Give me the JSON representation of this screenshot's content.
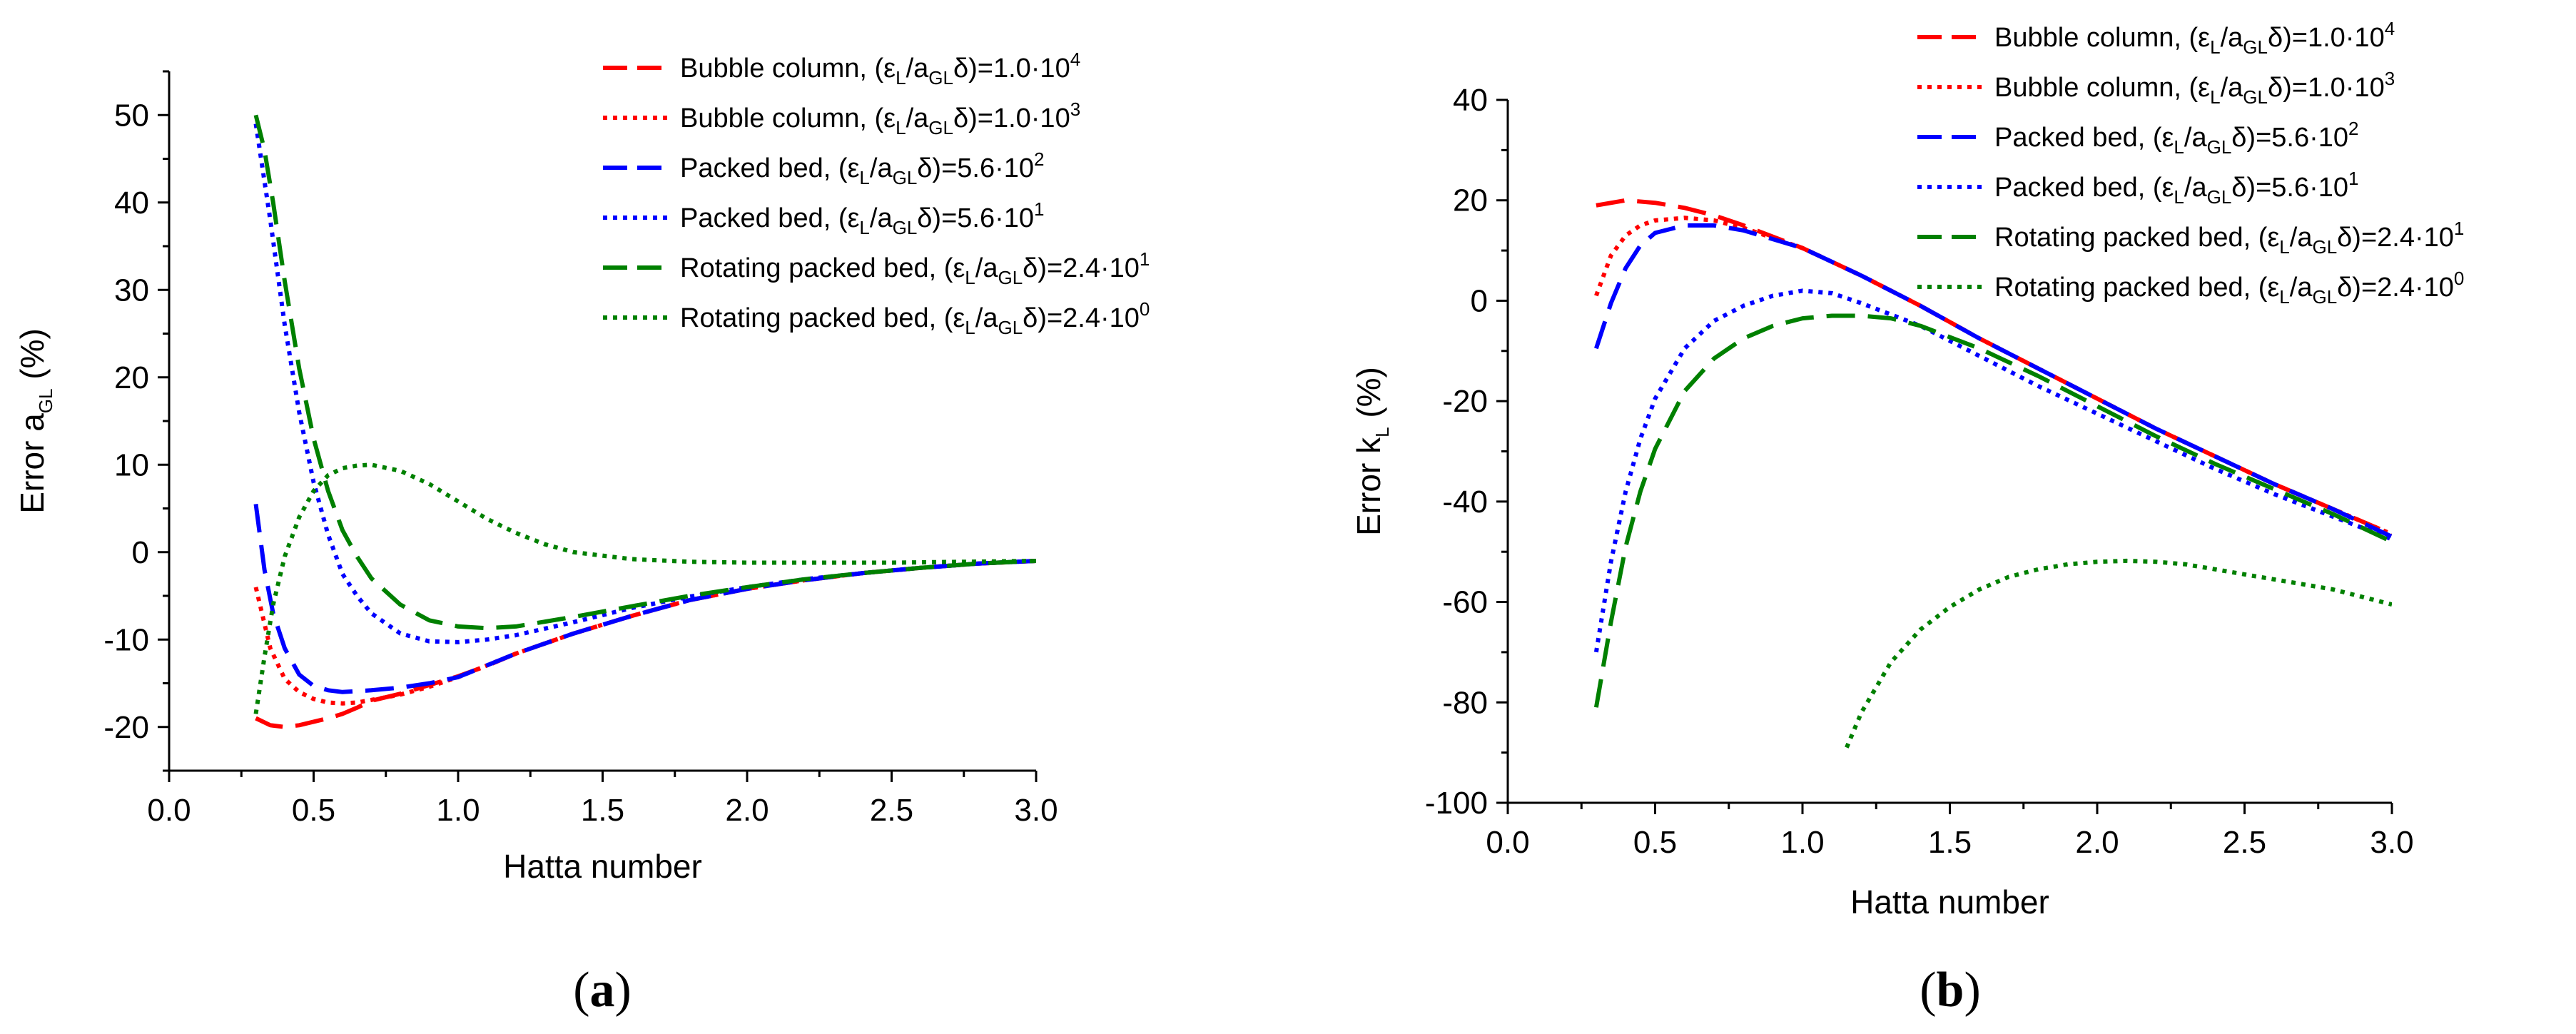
{
  "chart_data": [
    {
      "id": "a",
      "type": "line",
      "panel_label": {
        "open": "(",
        "letter": "a",
        "close": ")"
      },
      "xlabel": "Hatta number",
      "ylabel": {
        "main": "Error a",
        "sub": "GL",
        "suffix": " (%)"
      },
      "xlim": [
        0,
        3.0
      ],
      "ylim": [
        -25,
        55
      ],
      "xticks": [
        0.0,
        0.5,
        1.0,
        1.5,
        2.0,
        2.5,
        3.0
      ],
      "xtick_labels": [
        "0.0",
        "0.5",
        "1.0",
        "1.5",
        "2.0",
        "2.5",
        "3.0"
      ],
      "yticks": [
        -20,
        -10,
        0,
        10,
        20,
        30,
        40,
        50
      ],
      "ytick_labels": [
        "-20",
        "-10",
        "0",
        "10",
        "20",
        "30",
        "40",
        "50"
      ],
      "legend_position": "top-right",
      "series": [
        {
          "name": "Bubble column, (εL/aGLδ)=1.0·10^4",
          "legend": {
            "prefix": "Bubble column, (ε",
            "s1": "L",
            "mid": "/a",
            "s2": "GL",
            "post": "δ)=1.0·10",
            "exp": "4"
          },
          "color": "#ff0000",
          "style": "dash",
          "x": [
            0.3,
            0.35,
            0.4,
            0.45,
            0.5,
            0.55,
            0.6,
            0.65,
            0.7,
            0.8,
            0.9,
            1.0,
            1.1,
            1.2,
            1.4,
            1.6,
            1.8,
            2.0,
            2.2,
            2.4,
            2.6,
            2.8,
            3.0
          ],
          "y": [
            -19,
            -19.8,
            -20,
            -19.8,
            -19.4,
            -19,
            -18.5,
            -17.8,
            -17,
            -16.2,
            -15.2,
            -14.2,
            -13,
            -11.6,
            -9.3,
            -7.3,
            -5.5,
            -4.2,
            -3.2,
            -2.4,
            -1.8,
            -1.3,
            -1.0
          ]
        },
        {
          "name": "Bubble column, (εL/aGLδ)=1.0·10^3",
          "legend": {
            "prefix": "Bubble column, (ε",
            "s1": "L",
            "mid": "/a",
            "s2": "GL",
            "post": "δ)=1.0·10",
            "exp": "3"
          },
          "color": "#ff0000",
          "style": "dot",
          "x": [
            0.3,
            0.35,
            0.4,
            0.45,
            0.5,
            0.55,
            0.6,
            0.65,
            0.7,
            0.8,
            0.9,
            1.0,
            1.2,
            1.4,
            1.6,
            1.8,
            2.0,
            2.2,
            2.4,
            2.6,
            2.8,
            3.0
          ],
          "y": [
            -4,
            -11,
            -14.5,
            -16,
            -16.8,
            -17.2,
            -17.3,
            -17.2,
            -16.9,
            -16.3,
            -15.4,
            -14.3,
            -11.6,
            -9.3,
            -7.3,
            -5.5,
            -4.2,
            -3.2,
            -2.4,
            -1.8,
            -1.3,
            -1.0
          ]
        },
        {
          "name": "Packed bed, (εL/aGLδ)=5.6·10^2",
          "legend": {
            "prefix": "Packed bed, (ε",
            "s1": "L",
            "mid": "/a",
            "s2": "GL",
            "post": "δ)=5.6·10",
            "exp": "2"
          },
          "color": "#0000ff",
          "style": "dash",
          "x": [
            0.3,
            0.33,
            0.36,
            0.4,
            0.45,
            0.5,
            0.55,
            0.6,
            0.7,
            0.8,
            0.9,
            1.0,
            1.2,
            1.4,
            1.6,
            1.8,
            2.0,
            2.2,
            2.4,
            2.6,
            2.8,
            3.0
          ],
          "y": [
            5.5,
            -2,
            -7,
            -11,
            -14,
            -15.3,
            -15.8,
            -16,
            -15.8,
            -15.5,
            -15,
            -14.3,
            -11.6,
            -9.3,
            -7.3,
            -5.5,
            -4.2,
            -3.2,
            -2.4,
            -1.8,
            -1.3,
            -1.0
          ]
        },
        {
          "name": "Packed bed, (εL/aGLδ)=5.6·10^1",
          "legend": {
            "prefix": "Packed bed, (ε",
            "s1": "L",
            "mid": "/a",
            "s2": "GL",
            "post": "δ)=5.6·10",
            "exp": "1"
          },
          "color": "#0000ff",
          "style": "dot",
          "x": [
            0.3,
            0.35,
            0.4,
            0.45,
            0.5,
            0.55,
            0.6,
            0.65,
            0.7,
            0.8,
            0.9,
            1.0,
            1.1,
            1.2,
            1.4,
            1.6,
            1.8,
            2.0,
            2.2,
            2.4,
            2.6,
            2.8,
            3.0
          ],
          "y": [
            49,
            38,
            26,
            16,
            8,
            2,
            -2.5,
            -5,
            -7,
            -9.3,
            -10.2,
            -10.3,
            -10,
            -9.5,
            -8,
            -6.4,
            -5.1,
            -4,
            -3.1,
            -2.4,
            -1.8,
            -1.3,
            -1.0
          ]
        },
        {
          "name": "Rotating packed bed, (εL/aGLδ)=2.4·10^1",
          "legend": {
            "prefix": "Rotating packed bed, (ε",
            "s1": "L",
            "mid": "/a",
            "s2": "GL",
            "post": "δ)=2.4·10",
            "exp": "1"
          },
          "color": "#008000",
          "style": "dash",
          "x": [
            0.3,
            0.33,
            0.36,
            0.4,
            0.45,
            0.5,
            0.55,
            0.6,
            0.65,
            0.7,
            0.8,
            0.9,
            1.0,
            1.1,
            1.2,
            1.4,
            1.6,
            1.8,
            2.0,
            2.2,
            2.4,
            2.6,
            2.8,
            3.0
          ],
          "y": [
            50,
            46,
            40,
            31,
            21,
            13,
            7,
            2.5,
            -0.5,
            -3,
            -6,
            -7.8,
            -8.5,
            -8.7,
            -8.5,
            -7.4,
            -6.2,
            -5,
            -4,
            -3.1,
            -2.4,
            -1.8,
            -1.3,
            -1.0
          ]
        },
        {
          "name": "Rotating packed bed, (εL/aGLδ)=2.4·10^0",
          "legend": {
            "prefix": "Rotating packed bed, (ε",
            "s1": "L",
            "mid": "/a",
            "s2": "GL",
            "post": "δ)=2.4·10",
            "exp": "0"
          },
          "color": "#008000",
          "style": "dot",
          "x": [
            0.3,
            0.33,
            0.36,
            0.4,
            0.45,
            0.5,
            0.55,
            0.6,
            0.65,
            0.7,
            0.8,
            0.9,
            1.0,
            1.1,
            1.2,
            1.3,
            1.4,
            1.6,
            1.8,
            2.0,
            2.2,
            2.5,
            3.0
          ],
          "y": [
            -18.5,
            -12,
            -6,
            -0.5,
            4,
            7,
            8.8,
            9.6,
            9.9,
            10,
            9.3,
            7.8,
            5.8,
            3.8,
            2.2,
            0.9,
            0,
            -0.8,
            -1.1,
            -1.2,
            -1.2,
            -1.2,
            -1.0
          ]
        }
      ]
    },
    {
      "id": "b",
      "type": "line",
      "panel_label": {
        "open": "(",
        "letter": "b",
        "close": ")"
      },
      "xlabel": "Hatta number",
      "ylabel": {
        "main": "Error k",
        "sub": "L",
        "suffix": " (%)"
      },
      "xlim": [
        0,
        3.0
      ],
      "ylim": [
        -100,
        40
      ],
      "xticks": [
        0.0,
        0.5,
        1.0,
        1.5,
        2.0,
        2.5,
        3.0
      ],
      "xtick_labels": [
        "0.0",
        "0.5",
        "1.0",
        "1.5",
        "2.0",
        "2.5",
        "3.0"
      ],
      "yticks": [
        -100,
        -80,
        -60,
        -40,
        -20,
        0,
        20,
        40
      ],
      "ytick_labels": [
        "-100",
        "-80",
        "-60",
        "-40",
        "-20",
        "0",
        "20",
        "40"
      ],
      "legend_position": "top-right",
      "series": [
        {
          "name": "Bubble column, (εL/aGLδ)=1.0·10^4",
          "legend": {
            "prefix": "Bubble column, (ε",
            "s1": "L",
            "mid": "/a",
            "s2": "GL",
            "post": "δ)=1.0·10",
            "exp": "4"
          },
          "color": "#ff0000",
          "style": "dash",
          "x": [
            0.3,
            0.4,
            0.5,
            0.6,
            0.7,
            0.8,
            1.0,
            1.2,
            1.4,
            1.6,
            1.8,
            2.0,
            2.2,
            2.4,
            2.6,
            2.8,
            3.0
          ],
          "y": [
            19,
            20,
            19.5,
            18.5,
            17,
            15,
            10.5,
            5,
            -1,
            -7.5,
            -13.5,
            -19.5,
            -25.5,
            -31,
            -36.5,
            -41.5,
            -46.5
          ]
        },
        {
          "name": "Bubble column, (εL/aGLδ)=1.0·10^3",
          "legend": {
            "prefix": "Bubble column, (ε",
            "s1": "L",
            "mid": "/a",
            "s2": "GL",
            "post": "δ)=1.0·10",
            "exp": "3"
          },
          "color": "#ff0000",
          "style": "dot",
          "x": [
            0.3,
            0.35,
            0.4,
            0.45,
            0.5,
            0.6,
            0.7,
            0.8,
            1.0,
            1.2,
            1.4,
            1.6,
            1.8,
            2.0,
            2.2,
            2.4,
            2.6,
            2.8,
            3.0
          ],
          "y": [
            1,
            9,
            13,
            15,
            16,
            16.5,
            16,
            14.5,
            10.5,
            5,
            -1,
            -7.5,
            -13.5,
            -19.5,
            -25.5,
            -31,
            -36.5,
            -41.5,
            -46.5
          ]
        },
        {
          "name": "Packed bed, (εL/aGLδ)=5.6·10^2",
          "legend": {
            "prefix": "Packed bed, (ε",
            "s1": "L",
            "mid": "/a",
            "s2": "GL",
            "post": "δ)=5.6·10",
            "exp": "2"
          },
          "color": "#0000ff",
          "style": "dash",
          "x": [
            0.3,
            0.35,
            0.4,
            0.45,
            0.5,
            0.6,
            0.7,
            0.8,
            1.0,
            1.2,
            1.4,
            1.6,
            1.8,
            2.0,
            2.2,
            2.4,
            2.6,
            2.8,
            3.0
          ],
          "y": [
            -9.5,
            -0.5,
            6.5,
            11,
            13.5,
            15,
            15,
            14,
            10.5,
            5,
            -1,
            -7.5,
            -13.5,
            -19.5,
            -25.5,
            -31,
            -36.5,
            -41.5,
            -47
          ]
        },
        {
          "name": "Packed bed, (εL/aGLδ)=5.6·10^1",
          "legend": {
            "prefix": "Packed bed, (ε",
            "s1": "L",
            "mid": "/a",
            "s2": "GL",
            "post": "δ)=5.6·10",
            "exp": "1"
          },
          "color": "#0000ff",
          "style": "dot",
          "x": [
            0.3,
            0.35,
            0.4,
            0.45,
            0.5,
            0.6,
            0.7,
            0.8,
            0.9,
            1.0,
            1.1,
            1.2,
            1.4,
            1.6,
            1.8,
            2.0,
            2.2,
            2.4,
            2.6,
            2.8,
            3.0
          ],
          "y": [
            -70,
            -52,
            -38,
            -27.5,
            -19.5,
            -9.5,
            -4,
            -1,
            1,
            2,
            1.5,
            -0.5,
            -5,
            -11,
            -17,
            -22.5,
            -28,
            -33.5,
            -38.5,
            -43,
            -47.5
          ]
        },
        {
          "name": "Rotating packed bed, (εL/aGLδ)=2.4·10^1",
          "legend": {
            "prefix": "Rotating packed bed, (ε",
            "s1": "L",
            "mid": "/a",
            "s2": "GL",
            "post": "δ)=2.4·10",
            "exp": "1"
          },
          "color": "#008000",
          "style": "dash",
          "x": [
            0.3,
            0.35,
            0.4,
            0.45,
            0.5,
            0.6,
            0.7,
            0.8,
            0.9,
            1.0,
            1.1,
            1.2,
            1.3,
            1.4,
            1.6,
            1.8,
            2.0,
            2.2,
            2.4,
            2.6,
            2.8,
            3.0
          ],
          "y": [
            -81,
            -64,
            -49,
            -38,
            -29.5,
            -18,
            -11.5,
            -7.5,
            -5,
            -3.5,
            -3,
            -3,
            -3.5,
            -5,
            -9.5,
            -15,
            -21,
            -27,
            -32.5,
            -37.5,
            -42.5,
            -48
          ]
        },
        {
          "name": "Rotating packed bed, (εL/aGLδ)=2.4·10^0",
          "legend": {
            "prefix": "Rotating packed bed, (ε",
            "s1": "L",
            "mid": "/a",
            "s2": "GL",
            "post": "δ)=2.4·10",
            "exp": "0"
          },
          "color": "#008000",
          "style": "dot",
          "x": [
            1.15,
            1.2,
            1.3,
            1.4,
            1.5,
            1.6,
            1.7,
            1.8,
            1.9,
            2.0,
            2.1,
            2.2,
            2.3,
            2.4,
            2.5,
            2.6,
            2.7,
            2.8,
            2.9,
            3.0
          ],
          "y": [
            -89,
            -82,
            -72,
            -65.5,
            -61,
            -57.5,
            -55,
            -53.5,
            -52.5,
            -52,
            -51.8,
            -52,
            -52.5,
            -53.5,
            -54.5,
            -55.5,
            -56.5,
            -57.5,
            -59,
            -60.5
          ]
        }
      ]
    }
  ]
}
